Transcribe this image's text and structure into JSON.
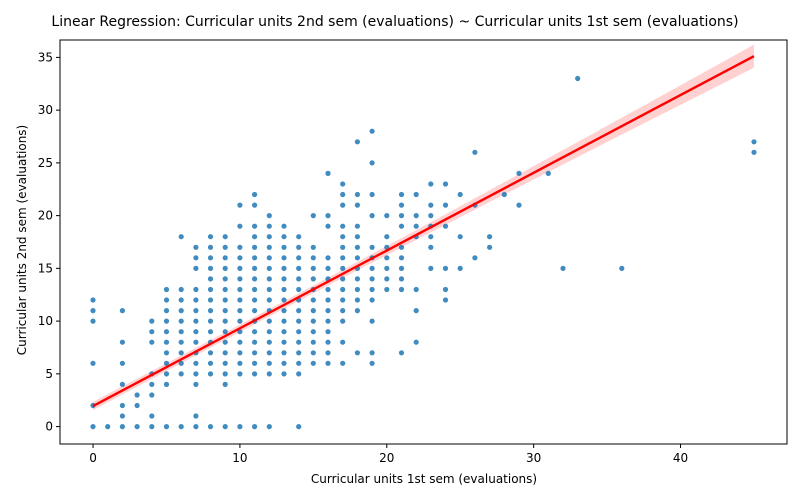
{
  "chart_data": {
    "type": "scatter",
    "title": "Linear Regression: Curricular units 2nd sem (evaluations) ~ Curricular units 1st sem (evaluations)",
    "xlabel": "Curricular units 1st sem (evaluations)",
    "ylabel": "Curricular units 2nd sem (evaluations)",
    "xlim": [
      -2.25,
      47.25
    ],
    "ylim": [
      -1.65,
      36.65
    ],
    "xticks": [
      0,
      10,
      20,
      30,
      40
    ],
    "yticks": [
      0,
      5,
      10,
      15,
      20,
      25,
      30,
      35
    ],
    "grid": false,
    "colors": {
      "points": "#1f77b4",
      "regression_line": "#ff0000",
      "confidence_band": "#ffb3b3"
    },
    "regression": {
      "intercept": 1.95,
      "slope": 0.737,
      "x_range": [
        0,
        45
      ],
      "ci_halfwidth_at_ends": [
        0.35,
        1.1
      ]
    },
    "points": [
      [
        0,
        0
      ],
      [
        0,
        2
      ],
      [
        0,
        6
      ],
      [
        0,
        10
      ],
      [
        0,
        11
      ],
      [
        0,
        12
      ],
      [
        1,
        0
      ],
      [
        2,
        0
      ],
      [
        2,
        1
      ],
      [
        2,
        2
      ],
      [
        2,
        4
      ],
      [
        2,
        6
      ],
      [
        2,
        8
      ],
      [
        2,
        11
      ],
      [
        3,
        0
      ],
      [
        3,
        2
      ],
      [
        3,
        3
      ],
      [
        4,
        0
      ],
      [
        4,
        1
      ],
      [
        4,
        3
      ],
      [
        4,
        4
      ],
      [
        4,
        5
      ],
      [
        4,
        8
      ],
      [
        4,
        9
      ],
      [
        4,
        10
      ],
      [
        5,
        0
      ],
      [
        5,
        4
      ],
      [
        5,
        5
      ],
      [
        5,
        6
      ],
      [
        5,
        7
      ],
      [
        5,
        8
      ],
      [
        5,
        9
      ],
      [
        5,
        10
      ],
      [
        5,
        11
      ],
      [
        5,
        12
      ],
      [
        5,
        13
      ],
      [
        6,
        0
      ],
      [
        6,
        5
      ],
      [
        6,
        6
      ],
      [
        6,
        7
      ],
      [
        6,
        8
      ],
      [
        6,
        9
      ],
      [
        6,
        10
      ],
      [
        6,
        11
      ],
      [
        6,
        12
      ],
      [
        6,
        13
      ],
      [
        6,
        18
      ],
      [
        7,
        0
      ],
      [
        7,
        1
      ],
      [
        7,
        4
      ],
      [
        7,
        5
      ],
      [
        7,
        6
      ],
      [
        7,
        7
      ],
      [
        7,
        8
      ],
      [
        7,
        9
      ],
      [
        7,
        10
      ],
      [
        7,
        11
      ],
      [
        7,
        12
      ],
      [
        7,
        13
      ],
      [
        7,
        15
      ],
      [
        7,
        16
      ],
      [
        7,
        17
      ],
      [
        8,
        0
      ],
      [
        8,
        5
      ],
      [
        8,
        6
      ],
      [
        8,
        7
      ],
      [
        8,
        8
      ],
      [
        8,
        9
      ],
      [
        8,
        10
      ],
      [
        8,
        11
      ],
      [
        8,
        12
      ],
      [
        8,
        13
      ],
      [
        8,
        14
      ],
      [
        8,
        15
      ],
      [
        8,
        16
      ],
      [
        8,
        17
      ],
      [
        8,
        18
      ],
      [
        9,
        0
      ],
      [
        9,
        4
      ],
      [
        9,
        5
      ],
      [
        9,
        6
      ],
      [
        9,
        7
      ],
      [
        9,
        8
      ],
      [
        9,
        9
      ],
      [
        9,
        10
      ],
      [
        9,
        11
      ],
      [
        9,
        12
      ],
      [
        9,
        13
      ],
      [
        9,
        14
      ],
      [
        9,
        15
      ],
      [
        9,
        16
      ],
      [
        9,
        17
      ],
      [
        9,
        18
      ],
      [
        10,
        0
      ],
      [
        10,
        5
      ],
      [
        10,
        6
      ],
      [
        10,
        7
      ],
      [
        10,
        8
      ],
      [
        10,
        9
      ],
      [
        10,
        10
      ],
      [
        10,
        11
      ],
      [
        10,
        12
      ],
      [
        10,
        13
      ],
      [
        10,
        14
      ],
      [
        10,
        15
      ],
      [
        10,
        16
      ],
      [
        10,
        17
      ],
      [
        10,
        19
      ],
      [
        10,
        21
      ],
      [
        11,
        0
      ],
      [
        11,
        5
      ],
      [
        11,
        6
      ],
      [
        11,
        7
      ],
      [
        11,
        8
      ],
      [
        11,
        9
      ],
      [
        11,
        10
      ],
      [
        11,
        11
      ],
      [
        11,
        12
      ],
      [
        11,
        13
      ],
      [
        11,
        14
      ],
      [
        11,
        15
      ],
      [
        11,
        16
      ],
      [
        11,
        17
      ],
      [
        11,
        18
      ],
      [
        11,
        19
      ],
      [
        11,
        21
      ],
      [
        11,
        22
      ],
      [
        12,
        0
      ],
      [
        12,
        5
      ],
      [
        12,
        6
      ],
      [
        12,
        7
      ],
      [
        12,
        8
      ],
      [
        12,
        9
      ],
      [
        12,
        10
      ],
      [
        12,
        11
      ],
      [
        12,
        12
      ],
      [
        12,
        13
      ],
      [
        12,
        14
      ],
      [
        12,
        15
      ],
      [
        12,
        16
      ],
      [
        12,
        17
      ],
      [
        12,
        18
      ],
      [
        12,
        19
      ],
      [
        12,
        20
      ],
      [
        13,
        5
      ],
      [
        13,
        6
      ],
      [
        13,
        7
      ],
      [
        13,
        8
      ],
      [
        13,
        9
      ],
      [
        13,
        10
      ],
      [
        13,
        11
      ],
      [
        13,
        12
      ],
      [
        13,
        13
      ],
      [
        13,
        14
      ],
      [
        13,
        15
      ],
      [
        13,
        16
      ],
      [
        13,
        17
      ],
      [
        13,
        18
      ],
      [
        13,
        19
      ],
      [
        14,
        0
      ],
      [
        14,
        5
      ],
      [
        14,
        6
      ],
      [
        14,
        7
      ],
      [
        14,
        8
      ],
      [
        14,
        9
      ],
      [
        14,
        10
      ],
      [
        14,
        11
      ],
      [
        14,
        12
      ],
      [
        14,
        13
      ],
      [
        14,
        14
      ],
      [
        14,
        15
      ],
      [
        14,
        16
      ],
      [
        14,
        17
      ],
      [
        14,
        18
      ],
      [
        15,
        6
      ],
      [
        15,
        7
      ],
      [
        15,
        8
      ],
      [
        15,
        9
      ],
      [
        15,
        10
      ],
      [
        15,
        11
      ],
      [
        15,
        12
      ],
      [
        15,
        13
      ],
      [
        15,
        14
      ],
      [
        15,
        15
      ],
      [
        15,
        16
      ],
      [
        15,
        17
      ],
      [
        15,
        20
      ],
      [
        16,
        6
      ],
      [
        16,
        7
      ],
      [
        16,
        8
      ],
      [
        16,
        9
      ],
      [
        16,
        10
      ],
      [
        16,
        11
      ],
      [
        16,
        12
      ],
      [
        16,
        13
      ],
      [
        16,
        14
      ],
      [
        16,
        15
      ],
      [
        16,
        16
      ],
      [
        16,
        19
      ],
      [
        16,
        20
      ],
      [
        16,
        24
      ],
      [
        17,
        6
      ],
      [
        17,
        8
      ],
      [
        17,
        10
      ],
      [
        17,
        11
      ],
      [
        17,
        12
      ],
      [
        17,
        13
      ],
      [
        17,
        14
      ],
      [
        17,
        15
      ],
      [
        17,
        16
      ],
      [
        17,
        17
      ],
      [
        17,
        18
      ],
      [
        17,
        19
      ],
      [
        17,
        21
      ],
      [
        17,
        22
      ],
      [
        17,
        23
      ],
      [
        18,
        7
      ],
      [
        18,
        11
      ],
      [
        18,
        12
      ],
      [
        18,
        13
      ],
      [
        18,
        14
      ],
      [
        18,
        15
      ],
      [
        18,
        16
      ],
      [
        18,
        17
      ],
      [
        18,
        18
      ],
      [
        18,
        19
      ],
      [
        18,
        21
      ],
      [
        18,
        22
      ],
      [
        18,
        27
      ],
      [
        19,
        6
      ],
      [
        19,
        7
      ],
      [
        19,
        10
      ],
      [
        19,
        12
      ],
      [
        19,
        13
      ],
      [
        19,
        14
      ],
      [
        19,
        15
      ],
      [
        19,
        16
      ],
      [
        19,
        17
      ],
      [
        19,
        20
      ],
      [
        19,
        22
      ],
      [
        19,
        25
      ],
      [
        19,
        28
      ],
      [
        20,
        13
      ],
      [
        20,
        14
      ],
      [
        20,
        15
      ],
      [
        20,
        16
      ],
      [
        20,
        17
      ],
      [
        20,
        18
      ],
      [
        20,
        20
      ],
      [
        21,
        7
      ],
      [
        21,
        13
      ],
      [
        21,
        14
      ],
      [
        21,
        15
      ],
      [
        21,
        16
      ],
      [
        21,
        17
      ],
      [
        21,
        19
      ],
      [
        21,
        20
      ],
      [
        21,
        21
      ],
      [
        21,
        22
      ],
      [
        22,
        8
      ],
      [
        22,
        11
      ],
      [
        22,
        13
      ],
      [
        22,
        18
      ],
      [
        22,
        19
      ],
      [
        22,
        20
      ],
      [
        22,
        22
      ],
      [
        23,
        15
      ],
      [
        23,
        17
      ],
      [
        23,
        18
      ],
      [
        23,
        19
      ],
      [
        23,
        20
      ],
      [
        23,
        21
      ],
      [
        23,
        23
      ],
      [
        24,
        12
      ],
      [
        24,
        13
      ],
      [
        24,
        15
      ],
      [
        24,
        19
      ],
      [
        24,
        21
      ],
      [
        24,
        23
      ],
      [
        25,
        15
      ],
      [
        25,
        18
      ],
      [
        25,
        22
      ],
      [
        26,
        16
      ],
      [
        26,
        21
      ],
      [
        26,
        26
      ],
      [
        27,
        17
      ],
      [
        27,
        18
      ],
      [
        28,
        22
      ],
      [
        29,
        21
      ],
      [
        29,
        24
      ],
      [
        31,
        24
      ],
      [
        32,
        15
      ],
      [
        33,
        33
      ],
      [
        36,
        15
      ],
      [
        45,
        26
      ],
      [
        45,
        27
      ]
    ]
  }
}
